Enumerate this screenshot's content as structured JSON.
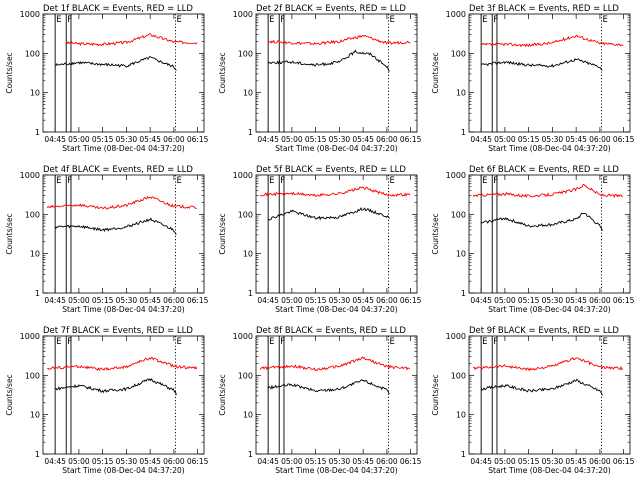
{
  "figure": {
    "background": "#ffffff",
    "colors": {
      "events": "#000000",
      "lld": "#ff0000",
      "axis": "#000000"
    }
  },
  "chart_data": [
    {
      "type": "line",
      "title": "Det 1f BLACK = Events, RED = LLD",
      "xlabel": "Start Time (08-Dec-04 04:37:20)",
      "ylabel": "Counts/sec",
      "x_tick_labels": [
        "04:45",
        "05:00",
        "05:15",
        "05:30",
        "05:45",
        "06:00",
        "06:15"
      ],
      "y_tick_labels": [
        "1",
        "10",
        "100",
        "1000"
      ],
      "yscale": "log",
      "ylim": [
        1,
        1000
      ],
      "xlim": [
        "04:37:20",
        "06:19:00"
      ],
      "markers": [
        {
          "time": "04:45:00",
          "label": "E"
        },
        {
          "time": "04:52:00",
          "label": "F"
        },
        {
          "time": "04:55:00",
          "label": ""
        },
        {
          "time": "06:01:00",
          "label": "E"
        }
      ],
      "series": [
        {
          "name": "LLD",
          "color": "#ff0000",
          "points": [
            [
              "04:52",
              185
            ],
            [
              "05:00",
              175
            ],
            [
              "05:15",
              170
            ],
            [
              "05:30",
              190
            ],
            [
              "05:45",
              300
            ],
            [
              "06:00",
              195
            ],
            [
              "06:15",
              185
            ]
          ]
        },
        {
          "name": "Events",
          "color": "#000000",
          "points": [
            [
              "04:45",
              50
            ],
            [
              "05:00",
              58
            ],
            [
              "05:15",
              52
            ],
            [
              "05:30",
              48
            ],
            [
              "05:45",
              78
            ],
            [
              "06:00",
              45
            ],
            [
              "06:02",
              35
            ]
          ]
        }
      ]
    },
    {
      "type": "line",
      "title": "Det 2f BLACK = Events, RED = LLD",
      "xlabel": "Start Time (08-Dec-04 04:37:20)",
      "ylabel": "Counts/sec",
      "x_tick_labels": [
        "04:45",
        "05:00",
        "05:15",
        "05:30",
        "05:45",
        "06:00",
        "06:15"
      ],
      "y_tick_labels": [
        "1",
        "10",
        "100",
        "1000"
      ],
      "yscale": "log",
      "ylim": [
        1,
        1000
      ],
      "xlim": [
        "04:37:20",
        "06:19:00"
      ],
      "markers": [
        {
          "time": "04:45:00",
          "label": "E"
        },
        {
          "time": "04:52:00",
          "label": "F"
        },
        {
          "time": "04:55:00",
          "label": ""
        },
        {
          "time": "06:01:00",
          "label": "E"
        }
      ],
      "series": [
        {
          "name": "LLD",
          "color": "#ff0000",
          "points": [
            [
              "04:45",
              200
            ],
            [
              "05:00",
              185
            ],
            [
              "05:15",
              175
            ],
            [
              "05:30",
              200
            ],
            [
              "05:45",
              280
            ],
            [
              "06:00",
              180
            ],
            [
              "06:15",
              195
            ]
          ]
        },
        {
          "name": "Events",
          "color": "#000000",
          "points": [
            [
              "04:45",
              58
            ],
            [
              "05:00",
              60
            ],
            [
              "05:15",
              50
            ],
            [
              "05:30",
              60
            ],
            [
              "05:40",
              110
            ],
            [
              "05:50",
              95
            ],
            [
              "06:00",
              45
            ],
            [
              "06:02",
              35
            ]
          ]
        }
      ]
    },
    {
      "type": "line",
      "title": "Det 3f BLACK = Events, RED = LLD",
      "xlabel": "Start Time (08-Dec-04 04:37:20)",
      "ylabel": "Counts/sec",
      "x_tick_labels": [
        "04:45",
        "05:00",
        "05:15",
        "05:30",
        "05:45",
        "06:00",
        "06:15"
      ],
      "y_tick_labels": [
        "1",
        "10",
        "100",
        "1000"
      ],
      "yscale": "log",
      "ylim": [
        1,
        1000
      ],
      "xlim": [
        "04:37:20",
        "06:19:00"
      ],
      "markers": [
        {
          "time": "04:45:00",
          "label": "E"
        },
        {
          "time": "04:52:00",
          "label": "F"
        },
        {
          "time": "04:55:00",
          "label": ""
        },
        {
          "time": "06:01:00",
          "label": "E"
        }
      ],
      "series": [
        {
          "name": "LLD",
          "color": "#ff0000",
          "points": [
            [
              "04:45",
              165
            ],
            [
              "05:00",
              170
            ],
            [
              "05:15",
              160
            ],
            [
              "05:30",
              185
            ],
            [
              "05:45",
              280
            ],
            [
              "06:00",
              180
            ],
            [
              "06:15",
              165
            ]
          ]
        },
        {
          "name": "Events",
          "color": "#000000",
          "points": [
            [
              "04:45",
              50
            ],
            [
              "05:00",
              60
            ],
            [
              "05:15",
              50
            ],
            [
              "05:30",
              48
            ],
            [
              "05:45",
              70
            ],
            [
              "06:00",
              45
            ],
            [
              "06:02",
              35
            ]
          ]
        }
      ]
    },
    {
      "type": "line",
      "title": "Det 4f BLACK = Events, RED = LLD",
      "xlabel": "Start Time (08-Dec-04 04:37:20)",
      "ylabel": "Counts/sec",
      "x_tick_labels": [
        "04:45",
        "05:00",
        "05:15",
        "05:30",
        "05:45",
        "06:00",
        "06:15"
      ],
      "y_tick_labels": [
        "1",
        "10",
        "100",
        "1000"
      ],
      "yscale": "log",
      "ylim": [
        1,
        1000
      ],
      "xlim": [
        "04:37:20",
        "06:19:00"
      ],
      "markers": [
        {
          "time": "04:45:00",
          "label": "E"
        },
        {
          "time": "04:52:00",
          "label": "F"
        },
        {
          "time": "04:55:00",
          "label": ""
        },
        {
          "time": "06:01:00",
          "label": "E"
        }
      ],
      "series": [
        {
          "name": "LLD",
          "color": "#ff0000",
          "points": [
            [
              "04:40",
              150
            ],
            [
              "05:00",
              175
            ],
            [
              "05:15",
              140
            ],
            [
              "05:30",
              170
            ],
            [
              "05:45",
              280
            ],
            [
              "06:00",
              160
            ],
            [
              "06:15",
              150
            ]
          ]
        },
        {
          "name": "Events",
          "color": "#000000",
          "points": [
            [
              "04:45",
              48
            ],
            [
              "05:00",
              50
            ],
            [
              "05:15",
              40
            ],
            [
              "05:30",
              48
            ],
            [
              "05:45",
              75
            ],
            [
              "06:00",
              40
            ],
            [
              "06:02",
              30
            ]
          ]
        }
      ]
    },
    {
      "type": "line",
      "title": "Det 5f BLACK = Events, RED = LLD",
      "xlabel": "Start Time (08-Dec-04 04:37:20)",
      "ylabel": "Counts/sec",
      "x_tick_labels": [
        "04:45",
        "05:00",
        "05:15",
        "05:30",
        "05:45",
        "06:00",
        "06:15"
      ],
      "y_tick_labels": [
        "1",
        "10",
        "100",
        "1000"
      ],
      "yscale": "log",
      "ylim": [
        1,
        1000
      ],
      "xlim": [
        "04:37:20",
        "06:19:00"
      ],
      "markers": [
        {
          "time": "04:45:00",
          "label": "E"
        },
        {
          "time": "04:52:00",
          "label": "F"
        },
        {
          "time": "04:55:00",
          "label": ""
        },
        {
          "time": "06:01:00",
          "label": "E"
        }
      ],
      "series": [
        {
          "name": "LLD",
          "color": "#ff0000",
          "points": [
            [
              "04:40",
              320
            ],
            [
              "05:00",
              340
            ],
            [
              "05:15",
              300
            ],
            [
              "05:30",
              340
            ],
            [
              "05:45",
              480
            ],
            [
              "06:00",
              310
            ],
            [
              "06:15",
              320
            ]
          ]
        },
        {
          "name": "Events",
          "color": "#000000",
          "points": [
            [
              "04:45",
              75
            ],
            [
              "05:00",
              120
            ],
            [
              "05:15",
              80
            ],
            [
              "05:30",
              85
            ],
            [
              "05:45",
              140
            ],
            [
              "06:00",
              90
            ],
            [
              "06:02",
              70
            ]
          ]
        }
      ]
    },
    {
      "type": "line",
      "title": "Det 6f BLACK = Events, RED = LLD",
      "xlabel": "Start Time (08-Dec-04 04:37:20)",
      "ylabel": "Counts/sec",
      "x_tick_labels": [
        "04:45",
        "05:00",
        "05:15",
        "05:30",
        "05:45",
        "06:00",
        "06:15"
      ],
      "y_tick_labels": [
        "1",
        "10",
        "100",
        "1000"
      ],
      "yscale": "log",
      "ylim": [
        1,
        1000
      ],
      "xlim": [
        "04:37:20",
        "06:19:00"
      ],
      "markers": [
        {
          "time": "04:45:00",
          "label": "E"
        },
        {
          "time": "04:52:00",
          "label": "F"
        },
        {
          "time": "04:55:00",
          "label": ""
        },
        {
          "time": "06:01:00",
          "label": "E"
        }
      ],
      "series": [
        {
          "name": "LLD",
          "color": "#ff0000",
          "points": [
            [
              "04:40",
              300
            ],
            [
              "05:00",
              330
            ],
            [
              "05:15",
              290
            ],
            [
              "05:30",
              320
            ],
            [
              "05:45",
              430
            ],
            [
              "05:50",
              560
            ],
            [
              "06:00",
              310
            ],
            [
              "06:15",
              290
            ]
          ]
        },
        {
          "name": "Events",
          "color": "#000000",
          "points": [
            [
              "04:45",
              60
            ],
            [
              "05:00",
              80
            ],
            [
              "05:15",
              50
            ],
            [
              "05:30",
              55
            ],
            [
              "05:45",
              75
            ],
            [
              "05:50",
              110
            ],
            [
              "06:00",
              50
            ],
            [
              "06:02",
              35
            ]
          ]
        }
      ]
    },
    {
      "type": "line",
      "title": "Det 7f BLACK = Events, RED = LLD",
      "xlabel": "Start Time (08-Dec-04 04:37:20)",
      "ylabel": "Counts/sec",
      "x_tick_labels": [
        "04:45",
        "05:00",
        "05:15",
        "05:30",
        "05:45",
        "06:00",
        "06:15"
      ],
      "y_tick_labels": [
        "1",
        "10",
        "100",
        "1000"
      ],
      "yscale": "log",
      "ylim": [
        1,
        1000
      ],
      "xlim": [
        "04:37:20",
        "06:19:00"
      ],
      "markers": [
        {
          "time": "04:45:00",
          "label": "E"
        },
        {
          "time": "04:52:00",
          "label": "F"
        },
        {
          "time": "04:55:00",
          "label": ""
        },
        {
          "time": "06:01:00",
          "label": "E"
        }
      ],
      "series": [
        {
          "name": "LLD",
          "color": "#ff0000",
          "points": [
            [
              "04:40",
              150
            ],
            [
              "05:00",
              170
            ],
            [
              "05:15",
              140
            ],
            [
              "05:30",
              165
            ],
            [
              "05:45",
              280
            ],
            [
              "06:00",
              170
            ],
            [
              "06:15",
              150
            ]
          ]
        },
        {
          "name": "Events",
          "color": "#000000",
          "points": [
            [
              "04:45",
              45
            ],
            [
              "05:00",
              55
            ],
            [
              "05:15",
              40
            ],
            [
              "05:30",
              45
            ],
            [
              "05:45",
              80
            ],
            [
              "06:00",
              42
            ],
            [
              "06:02",
              32
            ]
          ]
        }
      ]
    },
    {
      "type": "line",
      "title": "Det 8f BLACK = Events, RED = LLD",
      "xlabel": "Start Time (08-Dec-04 04:37:20)",
      "ylabel": "Counts/sec",
      "x_tick_labels": [
        "04:45",
        "05:00",
        "05:15",
        "05:30",
        "05:45",
        "06:00",
        "06:15"
      ],
      "y_tick_labels": [
        "1",
        "10",
        "100",
        "1000"
      ],
      "yscale": "log",
      "ylim": [
        1,
        1000
      ],
      "xlim": [
        "04:37:20",
        "06:19:00"
      ],
      "markers": [
        {
          "time": "04:45:00",
          "label": "E"
        },
        {
          "time": "04:52:00",
          "label": "F"
        },
        {
          "time": "04:55:00",
          "label": ""
        },
        {
          "time": "06:01:00",
          "label": "E"
        }
      ],
      "series": [
        {
          "name": "LLD",
          "color": "#ff0000",
          "points": [
            [
              "04:40",
              150
            ],
            [
              "05:00",
              175
            ],
            [
              "05:15",
              140
            ],
            [
              "05:30",
              170
            ],
            [
              "05:45",
              280
            ],
            [
              "06:00",
              165
            ],
            [
              "06:15",
              150
            ]
          ]
        },
        {
          "name": "Events",
          "color": "#000000",
          "points": [
            [
              "04:45",
              48
            ],
            [
              "05:00",
              58
            ],
            [
              "05:15",
              40
            ],
            [
              "05:30",
              45
            ],
            [
              "05:45",
              75
            ],
            [
              "06:00",
              42
            ],
            [
              "06:02",
              30
            ]
          ]
        }
      ]
    },
    {
      "type": "line",
      "title": "Det 9f BLACK = Events, RED = LLD",
      "xlabel": "Start Time (08-Dec-04 04:37:20)",
      "ylabel": "Counts/sec",
      "x_tick_labels": [
        "04:45",
        "05:00",
        "05:15",
        "05:30",
        "05:45",
        "06:00",
        "06:15"
      ],
      "y_tick_labels": [
        "1",
        "10",
        "100",
        "1000"
      ],
      "yscale": "log",
      "ylim": [
        1,
        1000
      ],
      "xlim": [
        "04:37:20",
        "06:19:00"
      ],
      "markers": [
        {
          "time": "04:45:00",
          "label": "E"
        },
        {
          "time": "04:52:00",
          "label": "F"
        },
        {
          "time": "04:55:00",
          "label": ""
        },
        {
          "time": "06:01:00",
          "label": "E"
        }
      ],
      "series": [
        {
          "name": "LLD",
          "color": "#ff0000",
          "points": [
            [
              "04:40",
              150
            ],
            [
              "05:00",
              175
            ],
            [
              "05:15",
              140
            ],
            [
              "05:30",
              170
            ],
            [
              "05:45",
              280
            ],
            [
              "06:00",
              160
            ],
            [
              "06:15",
              150
            ]
          ]
        },
        {
          "name": "Events",
          "color": "#000000",
          "points": [
            [
              "04:45",
              45
            ],
            [
              "05:00",
              55
            ],
            [
              "05:15",
              40
            ],
            [
              "05:30",
              45
            ],
            [
              "05:45",
              75
            ],
            [
              "06:00",
              40
            ],
            [
              "06:02",
              30
            ]
          ]
        }
      ]
    }
  ]
}
